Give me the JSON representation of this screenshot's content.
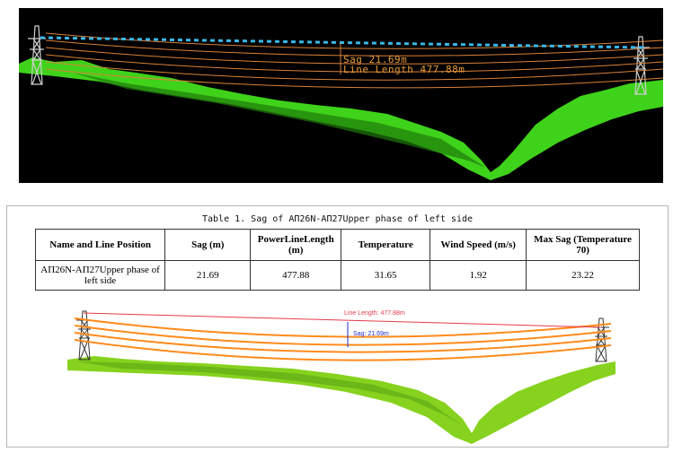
{
  "top_view": {
    "sag_label": "Sag  21.69m",
    "length_label": "Line Length  477.88m",
    "colors": {
      "background": "#000000",
      "conductor": "#d9823b",
      "vegetation": "#3fd21a",
      "sag_line": "#39b8e8"
    }
  },
  "table": {
    "caption": "Table 1. Sag of AП26N-AП27Upper phase of left side",
    "headers": [
      "Name and Line Position",
      "Sag (m)",
      "PowerLineLength (m)",
      "Temperature",
      "Wind Speed (m/s)",
      "Max Sag (Temperature 70)"
    ],
    "row": [
      "AП26N-AП27Upper phase of left side",
      "21.69",
      "477.88",
      "31.65",
      "1.92",
      "23.22"
    ]
  },
  "bottom_view": {
    "line_length_label": "Line Length: 477.88m",
    "sag_label": "Sag: 21.69m",
    "colors": {
      "conductor": "#ff8a1a",
      "vegetation": "#86d21e",
      "length_line": "#e53b4b",
      "sag_line": "#1f2fd0"
    }
  }
}
